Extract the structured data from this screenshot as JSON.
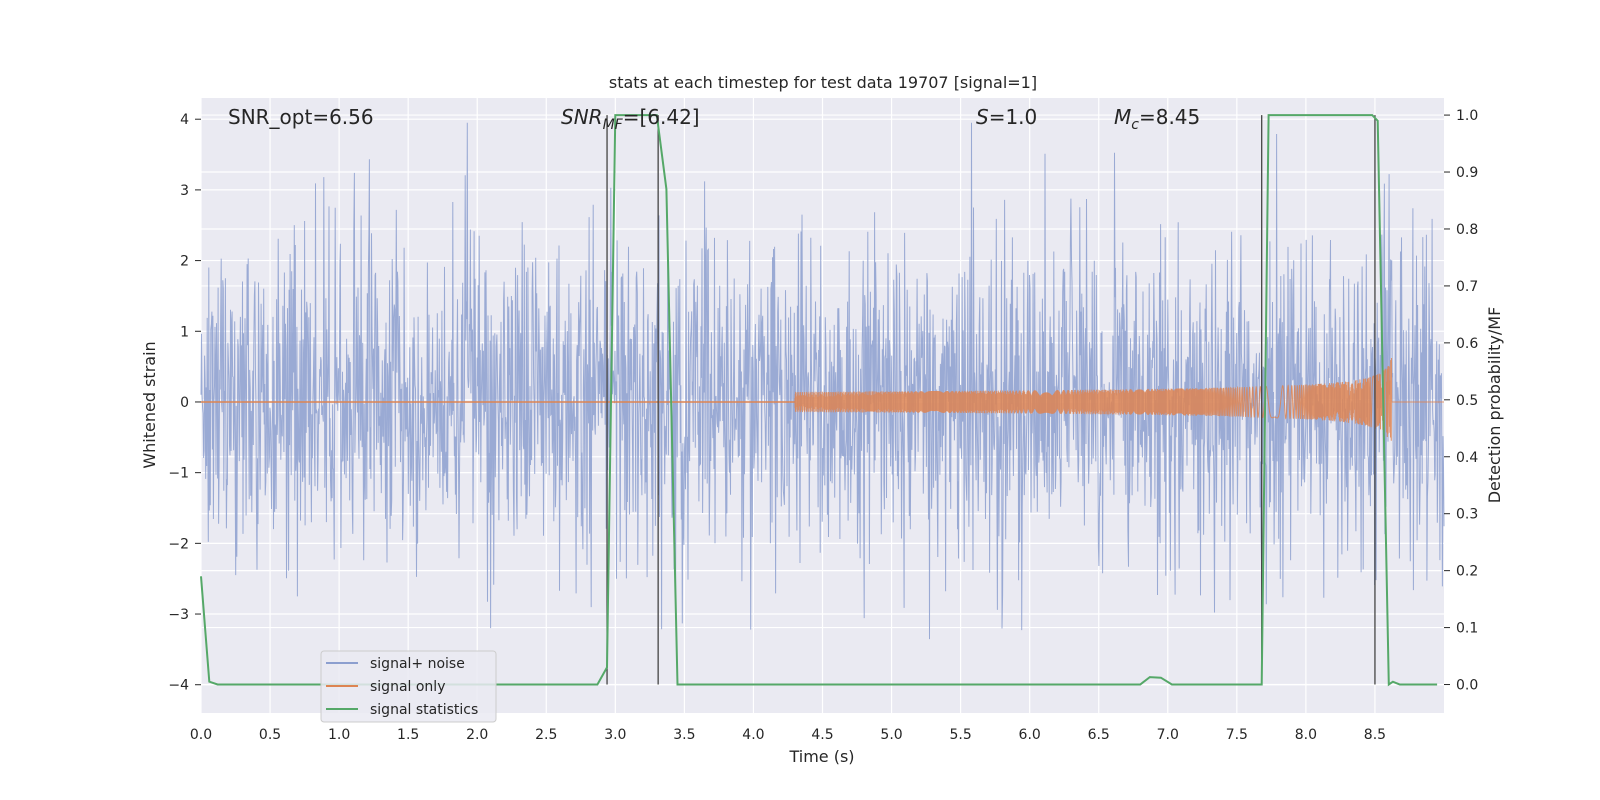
{
  "chart_data": {
    "type": "line",
    "title": "stats at each timestep for test data 19707 [signal=1]",
    "xlabel": "Time (s)",
    "ylabel_left": "Whitened strain",
    "ylabel_right": "Detection probability/MF",
    "xlim": [
      0.0,
      9.0
    ],
    "ylim_left": [
      -4.4,
      4.3
    ],
    "ylim_right": [
      -0.05,
      1.03
    ],
    "x_ticks": [
      0.0,
      0.5,
      1.0,
      1.5,
      2.0,
      2.5,
      3.0,
      3.5,
      4.0,
      4.5,
      5.0,
      5.5,
      6.0,
      6.5,
      7.0,
      7.5,
      8.0,
      8.5
    ],
    "x_tick_labels": [
      "0.0",
      "0.5",
      "1.0",
      "1.5",
      "2.0",
      "2.5",
      "3.0",
      "3.5",
      "4.0",
      "4.5",
      "5.0",
      "5.5",
      "6.0",
      "6.5",
      "7.0",
      "7.5",
      "8.0",
      "8.5"
    ],
    "y_ticks_left": [
      -4,
      -3,
      -2,
      -1,
      0,
      1,
      2,
      3,
      4
    ],
    "y_tick_labels_left": [
      "−4",
      "−3",
      "−2",
      "−1",
      "0",
      "1",
      "2",
      "3",
      "4"
    ],
    "y_ticks_right": [
      0.0,
      0.1,
      0.2,
      0.3,
      0.4,
      0.5,
      0.6,
      0.7,
      0.8,
      0.9,
      1.0
    ],
    "y_tick_labels_right": [
      "0.0",
      "0.1",
      "0.2",
      "0.3",
      "0.4",
      "0.5",
      "0.6",
      "0.7",
      "0.8",
      "0.9",
      "1.0"
    ],
    "grid": true,
    "legend_placement": "lower-left",
    "annotations": {
      "snr_opt": "SNR_opt=6.56",
      "snr_mf_sym": "SNR",
      "snr_mf_sub": "MF",
      "snr_mf_val": "=[6.42]",
      "s_sym": "S",
      "s_val": "=1.0",
      "mc_sym": "M",
      "mc_sub": "c",
      "mc_val": "=8.45"
    },
    "series": [
      {
        "name": "signal+ noise",
        "color": "#8c9fcf",
        "axis": "left",
        "description_values": {
          "x_start": 0.0,
          "x_end": 9.0,
          "amplitude_range": [
            -3.8,
            3.95
          ]
        }
      },
      {
        "name": "signal only",
        "color": "#dd8452",
        "axis": "left",
        "chirp": {
          "t_start": 4.3,
          "t_merger": 8.62,
          "peak_amplitude": 0.72
        }
      },
      {
        "name": "signal statistics",
        "color": "#55a868",
        "axis": "right",
        "x": [
          0.0,
          0.06,
          0.12,
          2.87,
          2.94,
          3.0,
          3.03,
          3.3,
          3.37,
          3.45,
          6.8,
          6.87,
          6.95,
          7.03,
          7.68,
          7.73,
          7.78,
          8.48,
          8.52,
          8.6,
          8.63,
          8.68,
          8.7,
          8.95
        ],
        "y": [
          0.19,
          0.005,
          0.0,
          0.0,
          0.03,
          1.0,
          1.0,
          1.0,
          0.87,
          0.0,
          0.0,
          0.013,
          0.012,
          0.0,
          0.0,
          1.0,
          1.0,
          1.0,
          0.99,
          0.0,
          0.005,
          0.0,
          0.0,
          0.0
        ]
      }
    ],
    "vertical_lines_x": [
      2.94,
      3.31,
      7.68,
      8.5
    ]
  }
}
